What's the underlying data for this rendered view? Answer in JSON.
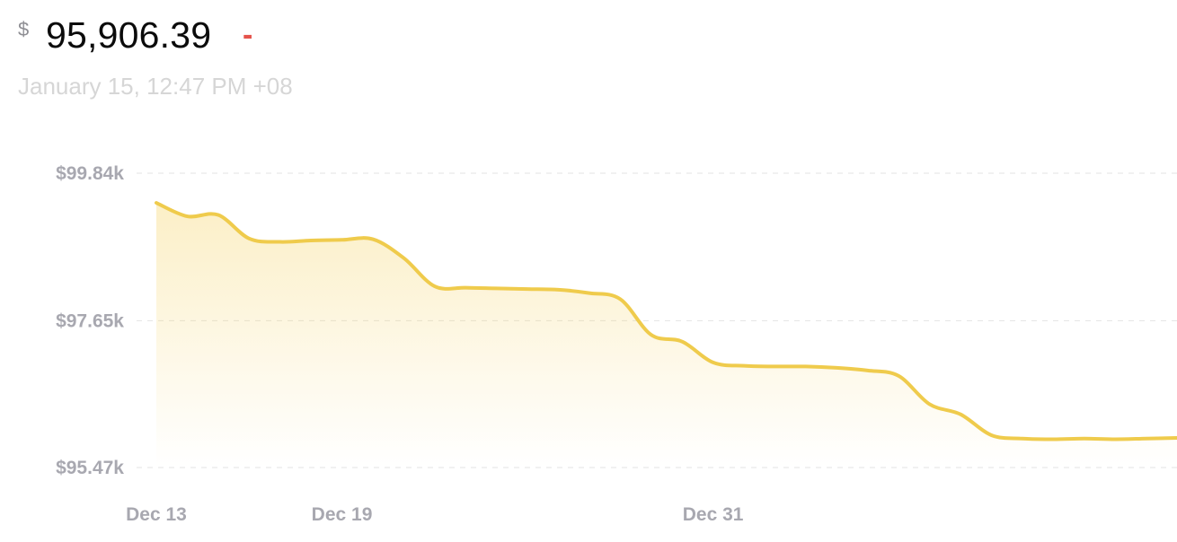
{
  "header": {
    "currency_symbol": "$",
    "price": "95,906.39",
    "change": "-",
    "timestamp": "January 15, 12:47 PM +08"
  },
  "colors": {
    "line": "#efcb4c",
    "fill": "#f6d56b",
    "gridline": "#e3e3e3",
    "tick_text": "#a8a8b0",
    "change": "#e5534b"
  },
  "chart_data": {
    "type": "area",
    "title": "",
    "xlabel": "",
    "ylabel": "",
    "grid": true,
    "y_ticks": [
      {
        "value": 99840,
        "label": "$99.84k"
      },
      {
        "value": 97650,
        "label": "$97.65k"
      },
      {
        "value": 95470,
        "label": "$95.47k"
      }
    ],
    "x_ticks": [
      {
        "value": "2024-12-13",
        "label": "Dec 13"
      },
      {
        "value": "2024-12-19",
        "label": "Dec 19"
      },
      {
        "value": "2024-12-31",
        "label": "Dec 31"
      }
    ],
    "x_range": [
      "2024-12-13",
      "2025-01-15"
    ],
    "ylim": [
      95470,
      99840
    ],
    "series": [
      {
        "x": [
          "2024-12-13",
          "2024-12-14",
          "2024-12-15",
          "2024-12-16",
          "2024-12-17",
          "2024-12-18",
          "2024-12-19",
          "2024-12-20",
          "2024-12-21",
          "2024-12-22",
          "2024-12-23",
          "2024-12-24",
          "2024-12-25",
          "2024-12-26",
          "2024-12-27",
          "2024-12-28",
          "2024-12-29",
          "2024-12-30",
          "2024-12-31",
          "2025-01-01",
          "2025-01-02",
          "2025-01-03",
          "2025-01-04",
          "2025-01-05",
          "2025-01-06",
          "2025-01-07",
          "2025-01-08",
          "2025-01-09",
          "2025-01-10",
          "2025-01-11",
          "2025-01-12",
          "2025-01-13",
          "2025-01-14",
          "2025-01-15"
        ],
        "y": [
          99400,
          99200,
          99220,
          98870,
          98820,
          98840,
          98850,
          98860,
          98580,
          98160,
          98140,
          98130,
          98120,
          98110,
          98060,
          97970,
          97440,
          97340,
          97030,
          96980,
          96970,
          96970,
          96950,
          96910,
          96830,
          96410,
          96260,
          95950,
          95900,
          95890,
          95900,
          95890,
          95900,
          95910
        ]
      }
    ]
  }
}
